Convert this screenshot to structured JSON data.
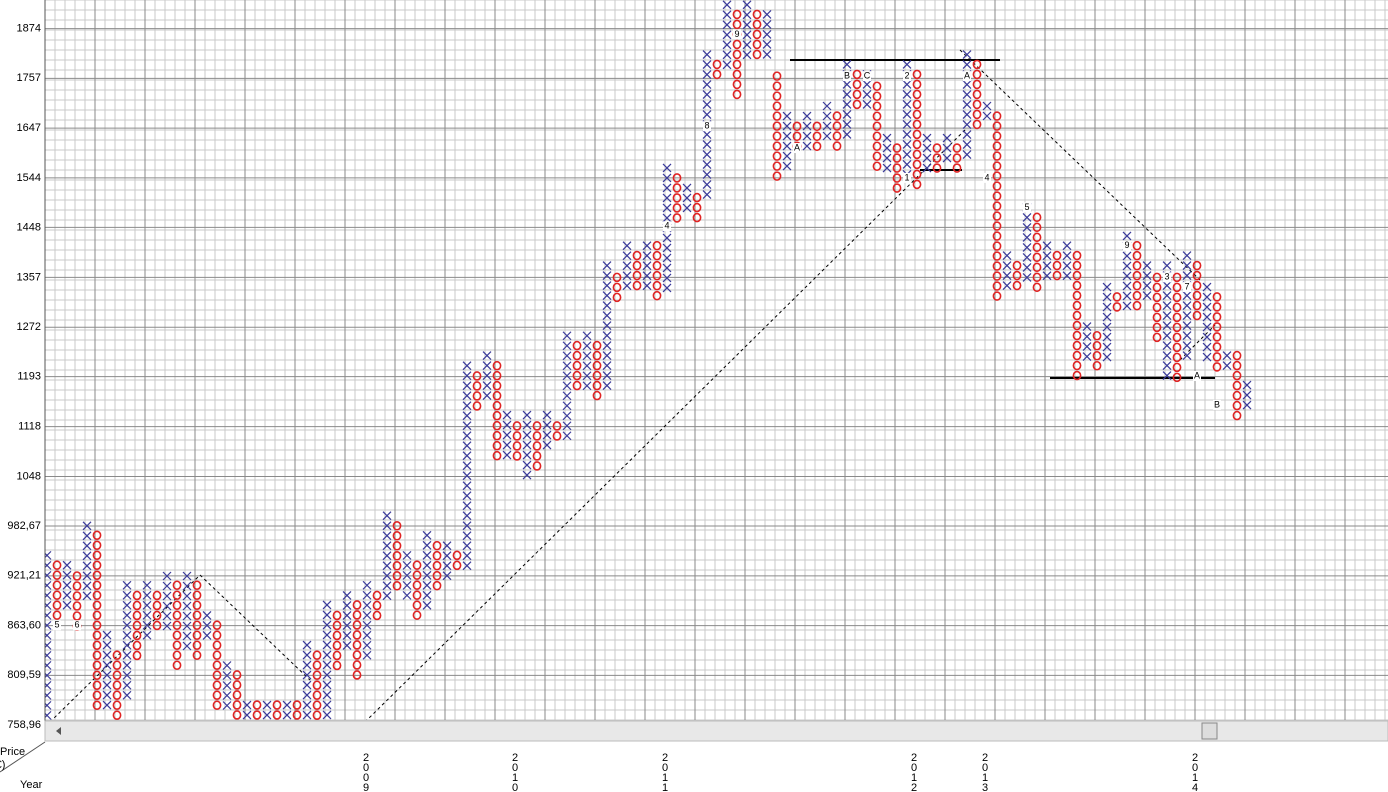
{
  "chart_data": {
    "type": "point-and-figure",
    "y_axis_label": [
      "Price",
      "(€)"
    ],
    "x_axis_label": "Year",
    "years": [
      "2009",
      "2010",
      "2011",
      "2012",
      "2013",
      "2014"
    ],
    "log": true,
    "grid": true,
    "ylim": [
      764,
      1945
    ],
    "yticks": [
      {
        "value": 758.96,
        "label": "758,96"
      },
      {
        "value": 809.59,
        "label": "809,59"
      },
      {
        "value": 863.6,
        "label": "863,60"
      },
      {
        "value": 921.21,
        "label": "921,21"
      },
      {
        "value": 982.67,
        "label": "982,67"
      },
      1048,
      1118,
      1193,
      1272,
      1357,
      1448,
      1544,
      1647,
      1757,
      1874
    ],
    "x_color": "#3a3a9a",
    "o_color": "#e02424",
    "columns": [
      {
        "type": "X",
        "high": 946,
        "low": 769
      },
      {
        "type": "O",
        "high": 934,
        "low": 875,
        "markers": [
          {
            "at": 864,
            "label": "5"
          }
        ]
      },
      {
        "type": "X",
        "high": 934,
        "low": 887
      },
      {
        "type": "O",
        "high": 921,
        "low": 864,
        "markers": [
          {
            "at": 864,
            "label": "6"
          }
        ]
      },
      {
        "type": "X",
        "high": 983,
        "low": 898
      },
      {
        "type": "O",
        "high": 971,
        "low": 779
      },
      {
        "type": "X",
        "high": 853,
        "low": 779
      },
      {
        "type": "O",
        "high": 831,
        "low": 769
      },
      {
        "type": "X",
        "high": 910,
        "low": 789
      },
      {
        "type": "O",
        "high": 898,
        "low": 831
      },
      {
        "type": "X",
        "high": 910,
        "low": 853
      },
      {
        "type": "O",
        "high": 898,
        "low": 864
      },
      {
        "type": "X",
        "high": 921,
        "low": 864
      },
      {
        "type": "O",
        "high": 910,
        "low": 820
      },
      {
        "type": "X",
        "high": 921,
        "low": 842
      },
      {
        "type": "O",
        "high": 910,
        "low": 831
      },
      {
        "type": "X",
        "high": 875,
        "low": 853
      },
      {
        "type": "O",
        "high": 864,
        "low": 779
      },
      {
        "type": "X",
        "high": 820,
        "low": 779
      },
      {
        "type": "O",
        "high": 810,
        "low": 769
      },
      {
        "type": "X",
        "high": 779,
        "low": 769
      },
      {
        "type": "O",
        "high": 779,
        "low": 769
      },
      {
        "type": "X",
        "high": 779,
        "low": 769
      },
      {
        "type": "O",
        "high": 779,
        "low": 769
      },
      {
        "type": "X",
        "high": 779,
        "low": 769
      },
      {
        "type": "O",
        "high": 779,
        "low": 769
      },
      {
        "type": "X",
        "high": 842,
        "low": 769
      },
      {
        "type": "O",
        "high": 831,
        "low": 769
      },
      {
        "type": "X",
        "high": 887,
        "low": 769
      },
      {
        "type": "O",
        "high": 875,
        "low": 820
      },
      {
        "type": "X",
        "high": 898,
        "low": 842
      },
      {
        "type": "O",
        "high": 887,
        "low": 810
      },
      {
        "type": "X",
        "high": 910,
        "low": 831
      },
      {
        "type": "O",
        "high": 898,
        "low": 875
      },
      {
        "type": "X",
        "high": 996,
        "low": 898
      },
      {
        "type": "O",
        "high": 983,
        "low": 910
      },
      {
        "type": "X",
        "high": 946,
        "low": 898
      },
      {
        "type": "O",
        "high": 934,
        "low": 875
      },
      {
        "type": "X",
        "high": 971,
        "low": 887
      },
      {
        "type": "O",
        "high": 958,
        "low": 910
      },
      {
        "type": "X",
        "high": 958,
        "low": 921
      },
      {
        "type": "O",
        "high": 946,
        "low": 934
      },
      {
        "type": "X",
        "high": 1210,
        "low": 934
      },
      {
        "type": "O",
        "high": 1194,
        "low": 1150
      },
      {
        "type": "X",
        "high": 1226,
        "low": 1165
      },
      {
        "type": "O",
        "high": 1210,
        "low": 1077
      },
      {
        "type": "X",
        "high": 1135,
        "low": 1077
      },
      {
        "type": "O",
        "high": 1119,
        "low": 1077
      },
      {
        "type": "X",
        "high": 1135,
        "low": 1049
      },
      {
        "type": "O",
        "high": 1119,
        "low": 1063
      },
      {
        "type": "X",
        "high": 1135,
        "low": 1091
      },
      {
        "type": "O",
        "high": 1119,
        "low": 1105
      },
      {
        "type": "X",
        "high": 1258,
        "low": 1105
      },
      {
        "type": "O",
        "high": 1242,
        "low": 1180
      },
      {
        "type": "X",
        "high": 1258,
        "low": 1180
      },
      {
        "type": "O",
        "high": 1242,
        "low": 1165
      },
      {
        "type": "X",
        "high": 1378,
        "low": 1180
      },
      {
        "type": "O",
        "high": 1357,
        "low": 1323
      },
      {
        "type": "X",
        "high": 1414,
        "low": 1340
      },
      {
        "type": "O",
        "high": 1396,
        "low": 1340
      },
      {
        "type": "X",
        "high": 1414,
        "low": 1340
      },
      {
        "type": "O",
        "high": 1414,
        "low": 1323
      },
      {
        "type": "X",
        "high": 1564,
        "low": 1340,
        "markers": [
          {
            "at": 1450,
            "label": "4"
          }
        ]
      },
      {
        "type": "O",
        "high": 1544,
        "low": 1467
      },
      {
        "type": "X",
        "high": 1524,
        "low": 1486
      },
      {
        "type": "O",
        "high": 1505,
        "low": 1467
      },
      {
        "type": "X",
        "high": 1812,
        "low": 1505,
        "markers": [
          {
            "at": 1651,
            "label": "8"
          }
        ]
      },
      {
        "type": "O",
        "high": 1789,
        "low": 1762
      },
      {
        "type": "X",
        "high": 1933,
        "low": 1789
      },
      {
        "type": "O",
        "high": 1909,
        "low": 1717,
        "markers": [
          {
            "at": 1860,
            "label": "9"
          }
        ]
      },
      {
        "type": "X",
        "high": 1933,
        "low": 1812
      },
      {
        "type": "O",
        "high": 1909,
        "low": 1812
      },
      {
        "type": "X",
        "high": 1909,
        "low": 1812
      },
      {
        "type": "O",
        "high": 1762,
        "low": 1544
      },
      {
        "type": "X",
        "high": 1673,
        "low": 1564
      },
      {
        "type": "O",
        "high": 1651,
        "low": 1605,
        "markers": [
          {
            "at": 1605,
            "label": "A"
          }
        ]
      },
      {
        "type": "X",
        "high": 1673,
        "low": 1605
      },
      {
        "type": "O",
        "high": 1651,
        "low": 1605
      },
      {
        "type": "X",
        "high": 1695,
        "low": 1626
      },
      {
        "type": "O",
        "high": 1673,
        "low": 1605
      },
      {
        "type": "X",
        "high": 1789,
        "low": 1626,
        "markers": [
          {
            "at": 1762,
            "label": "B"
          }
        ]
      },
      {
        "type": "O",
        "high": 1766,
        "low": 1695
      },
      {
        "type": "X",
        "high": 1766,
        "low": 1695,
        "markers": [
          {
            "at": 1762,
            "label": "C"
          }
        ]
      },
      {
        "type": "O",
        "high": 1739,
        "low": 1564
      },
      {
        "type": "X",
        "high": 1626,
        "low": 1564
      },
      {
        "type": "O",
        "high": 1605,
        "low": 1524
      },
      {
        "type": "X",
        "high": 1789,
        "low": 1544,
        "markers": [
          {
            "at": 1762,
            "label": "2"
          },
          {
            "at": 1544,
            "label": "1"
          }
        ]
      },
      {
        "type": "O",
        "high": 1766,
        "low": 1524
      },
      {
        "type": "X",
        "high": 1626,
        "low": 1564
      },
      {
        "type": "O",
        "high": 1605,
        "low": 1564
      },
      {
        "type": "X",
        "high": 1626,
        "low": 1584
      },
      {
        "type": "O",
        "high": 1605,
        "low": 1564
      },
      {
        "type": "X",
        "high": 1812,
        "low": 1584,
        "markers": [
          {
            "at": 1762,
            "label": "A"
          }
        ]
      },
      {
        "type": "O",
        "high": 1789,
        "low": 1651
      },
      {
        "type": "X",
        "high": 1695,
        "low": 1673,
        "markers": [
          {
            "at": 1544,
            "label": "4"
          }
        ]
      },
      {
        "type": "O",
        "high": 1673,
        "low": 1323
      },
      {
        "type": "X",
        "high": 1396,
        "low": 1340
      },
      {
        "type": "O",
        "high": 1378,
        "low": 1340
      },
      {
        "type": "X",
        "high": 1486,
        "low": 1357,
        "markers": [
          {
            "at": 1486,
            "label": "5"
          }
        ]
      },
      {
        "type": "O",
        "high": 1467,
        "low": 1340
      },
      {
        "type": "X",
        "high": 1414,
        "low": 1357
      },
      {
        "type": "O",
        "high": 1396,
        "low": 1357
      },
      {
        "type": "X",
        "high": 1414,
        "low": 1357
      },
      {
        "type": "O",
        "high": 1396,
        "low": 1194
      },
      {
        "type": "X",
        "high": 1273,
        "low": 1226
      },
      {
        "type": "O",
        "high": 1258,
        "low": 1210
      },
      {
        "type": "X",
        "high": 1340,
        "low": 1226
      },
      {
        "type": "O",
        "high": 1323,
        "low": 1306
      },
      {
        "type": "X",
        "high": 1432,
        "low": 1306,
        "markers": [
          {
            "at": 1414,
            "label": "9"
          }
        ]
      },
      {
        "type": "O",
        "high": 1414,
        "low": 1306
      },
      {
        "type": "X",
        "high": 1378,
        "low": 1323
      },
      {
        "type": "O",
        "high": 1357,
        "low": 1258
      },
      {
        "type": "X",
        "high": 1378,
        "low": 1194,
        "markers": [
          {
            "at": 1357,
            "label": "3"
          }
        ]
      },
      {
        "type": "O",
        "high": 1357,
        "low": 1194
      },
      {
        "type": "X",
        "high": 1396,
        "low": 1226,
        "markers": [
          {
            "at": 1340,
            "label": "7"
          }
        ]
      },
      {
        "type": "O",
        "high": 1378,
        "low": 1289,
        "markers": [
          {
            "at": 1194,
            "label": "A"
          }
        ]
      },
      {
        "type": "X",
        "high": 1340,
        "low": 1226
      },
      {
        "type": "O",
        "high": 1323,
        "low": 1210,
        "markers": [
          {
            "at": 1150,
            "label": "B"
          }
        ]
      },
      {
        "type": "X",
        "high": 1226,
        "low": 1210
      },
      {
        "type": "O",
        "high": 1226,
        "low": 1135
      },
      {
        "type": "X",
        "high": 1180,
        "low": 1150
      }
    ]
  }
}
